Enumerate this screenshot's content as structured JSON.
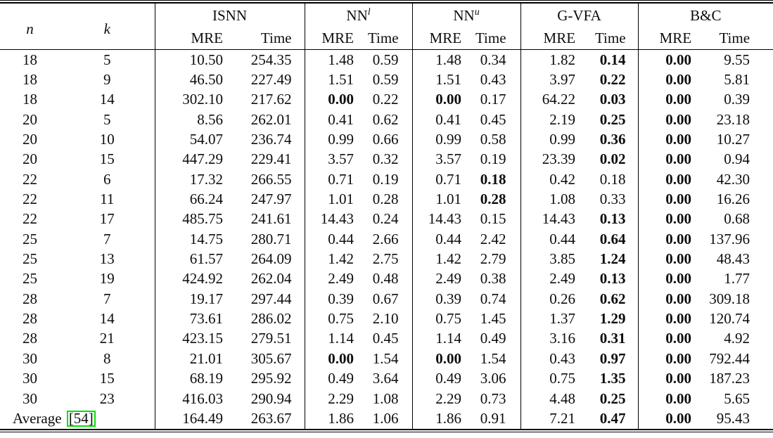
{
  "table": {
    "col_n": "n",
    "col_k": "k",
    "groups": [
      {
        "name": "ISNN",
        "sup": ""
      },
      {
        "name": "NN",
        "sup": "l"
      },
      {
        "name": "NN",
        "sup": "u"
      },
      {
        "name": "G-VFA",
        "sup": ""
      },
      {
        "name": "B&C",
        "sup": ""
      }
    ],
    "subheaders": {
      "mre": "MRE",
      "time": "Time"
    },
    "rows": [
      {
        "n": "18",
        "k": "5",
        "v": [
          "10.50",
          "254.35",
          "1.48",
          "0.59",
          "1.48",
          "0.34",
          "1.82",
          "0.14",
          "0.00",
          "9.55"
        ],
        "b": [
          7,
          8
        ]
      },
      {
        "n": "18",
        "k": "9",
        "v": [
          "46.50",
          "227.49",
          "1.51",
          "0.59",
          "1.51",
          "0.43",
          "3.97",
          "0.22",
          "0.00",
          "5.81"
        ],
        "b": [
          7,
          8
        ]
      },
      {
        "n": "18",
        "k": "14",
        "v": [
          "302.10",
          "217.62",
          "0.00",
          "0.22",
          "0.00",
          "0.17",
          "64.22",
          "0.03",
          "0.00",
          "0.39"
        ],
        "b": [
          2,
          4,
          7,
          8
        ]
      },
      {
        "n": "20",
        "k": "5",
        "v": [
          "8.56",
          "262.01",
          "0.41",
          "0.62",
          "0.41",
          "0.45",
          "2.19",
          "0.25",
          "0.00",
          "23.18"
        ],
        "b": [
          7,
          8
        ]
      },
      {
        "n": "20",
        "k": "10",
        "v": [
          "54.07",
          "236.74",
          "0.99",
          "0.66",
          "0.99",
          "0.58",
          "0.99",
          "0.36",
          "0.00",
          "10.27"
        ],
        "b": [
          7,
          8
        ]
      },
      {
        "n": "20",
        "k": "15",
        "v": [
          "447.29",
          "229.41",
          "3.57",
          "0.32",
          "3.57",
          "0.19",
          "23.39",
          "0.02",
          "0.00",
          "0.94"
        ],
        "b": [
          7,
          8
        ]
      },
      {
        "n": "22",
        "k": "6",
        "v": [
          "17.32",
          "266.55",
          "0.71",
          "0.19",
          "0.71",
          "0.18",
          "0.42",
          "0.18",
          "0.00",
          "42.30"
        ],
        "b": [
          5,
          8
        ]
      },
      {
        "n": "22",
        "k": "11",
        "v": [
          "66.24",
          "247.97",
          "1.01",
          "0.28",
          "1.01",
          "0.28",
          "1.08",
          "0.33",
          "0.00",
          "16.26"
        ],
        "b": [
          5,
          8
        ]
      },
      {
        "n": "22",
        "k": "17",
        "v": [
          "485.75",
          "241.61",
          "14.43",
          "0.24",
          "14.43",
          "0.15",
          "14.43",
          "0.13",
          "0.00",
          "0.68"
        ],
        "b": [
          7,
          8
        ]
      },
      {
        "n": "25",
        "k": "7",
        "v": [
          "14.75",
          "280.71",
          "0.44",
          "2.66",
          "0.44",
          "2.42",
          "0.44",
          "0.64",
          "0.00",
          "137.96"
        ],
        "b": [
          7,
          8
        ]
      },
      {
        "n": "25",
        "k": "13",
        "v": [
          "61.57",
          "264.09",
          "1.42",
          "2.75",
          "1.42",
          "2.79",
          "3.85",
          "1.24",
          "0.00",
          "48.43"
        ],
        "b": [
          7,
          8
        ]
      },
      {
        "n": "25",
        "k": "19",
        "v": [
          "424.92",
          "262.04",
          "2.49",
          "0.48",
          "2.49",
          "0.38",
          "2.49",
          "0.13",
          "0.00",
          "1.77"
        ],
        "b": [
          7,
          8
        ]
      },
      {
        "n": "28",
        "k": "7",
        "v": [
          "19.17",
          "297.44",
          "0.39",
          "0.67",
          "0.39",
          "0.74",
          "0.26",
          "0.62",
          "0.00",
          "309.18"
        ],
        "b": [
          7,
          8
        ]
      },
      {
        "n": "28",
        "k": "14",
        "v": [
          "73.61",
          "286.02",
          "0.75",
          "2.10",
          "0.75",
          "1.45",
          "1.37",
          "1.29",
          "0.00",
          "120.74"
        ],
        "b": [
          7,
          8
        ]
      },
      {
        "n": "28",
        "k": "21",
        "v": [
          "423.15",
          "279.51",
          "1.14",
          "0.45",
          "1.14",
          "0.49",
          "3.16",
          "0.31",
          "0.00",
          "4.92"
        ],
        "b": [
          7,
          8
        ]
      },
      {
        "n": "30",
        "k": "8",
        "v": [
          "21.01",
          "305.67",
          "0.00",
          "1.54",
          "0.00",
          "1.54",
          "0.43",
          "0.97",
          "0.00",
          "792.44"
        ],
        "b": [
          2,
          4,
          7,
          8
        ]
      },
      {
        "n": "30",
        "k": "15",
        "v": [
          "68.19",
          "295.92",
          "0.49",
          "3.64",
          "0.49",
          "3.06",
          "0.75",
          "1.35",
          "0.00",
          "187.23"
        ],
        "b": [
          7,
          8
        ]
      },
      {
        "n": "30",
        "k": "23",
        "v": [
          "416.03",
          "290.94",
          "2.29",
          "1.08",
          "2.29",
          "0.73",
          "4.48",
          "0.25",
          "0.00",
          "5.65"
        ],
        "b": [
          7,
          8
        ]
      }
    ],
    "average": {
      "label": "Average",
      "cite": "[54]",
      "v": [
        "164.49",
        "263.67",
        "1.86",
        "1.06",
        "1.86",
        "0.91",
        "7.21",
        "0.47",
        "0.00",
        "95.43"
      ],
      "b": [
        7,
        8
      ]
    }
  },
  "colors": {
    "citation_border": "#00e400",
    "rule": "#000000",
    "text": "#0d0d0d",
    "background": "#ffffff"
  }
}
